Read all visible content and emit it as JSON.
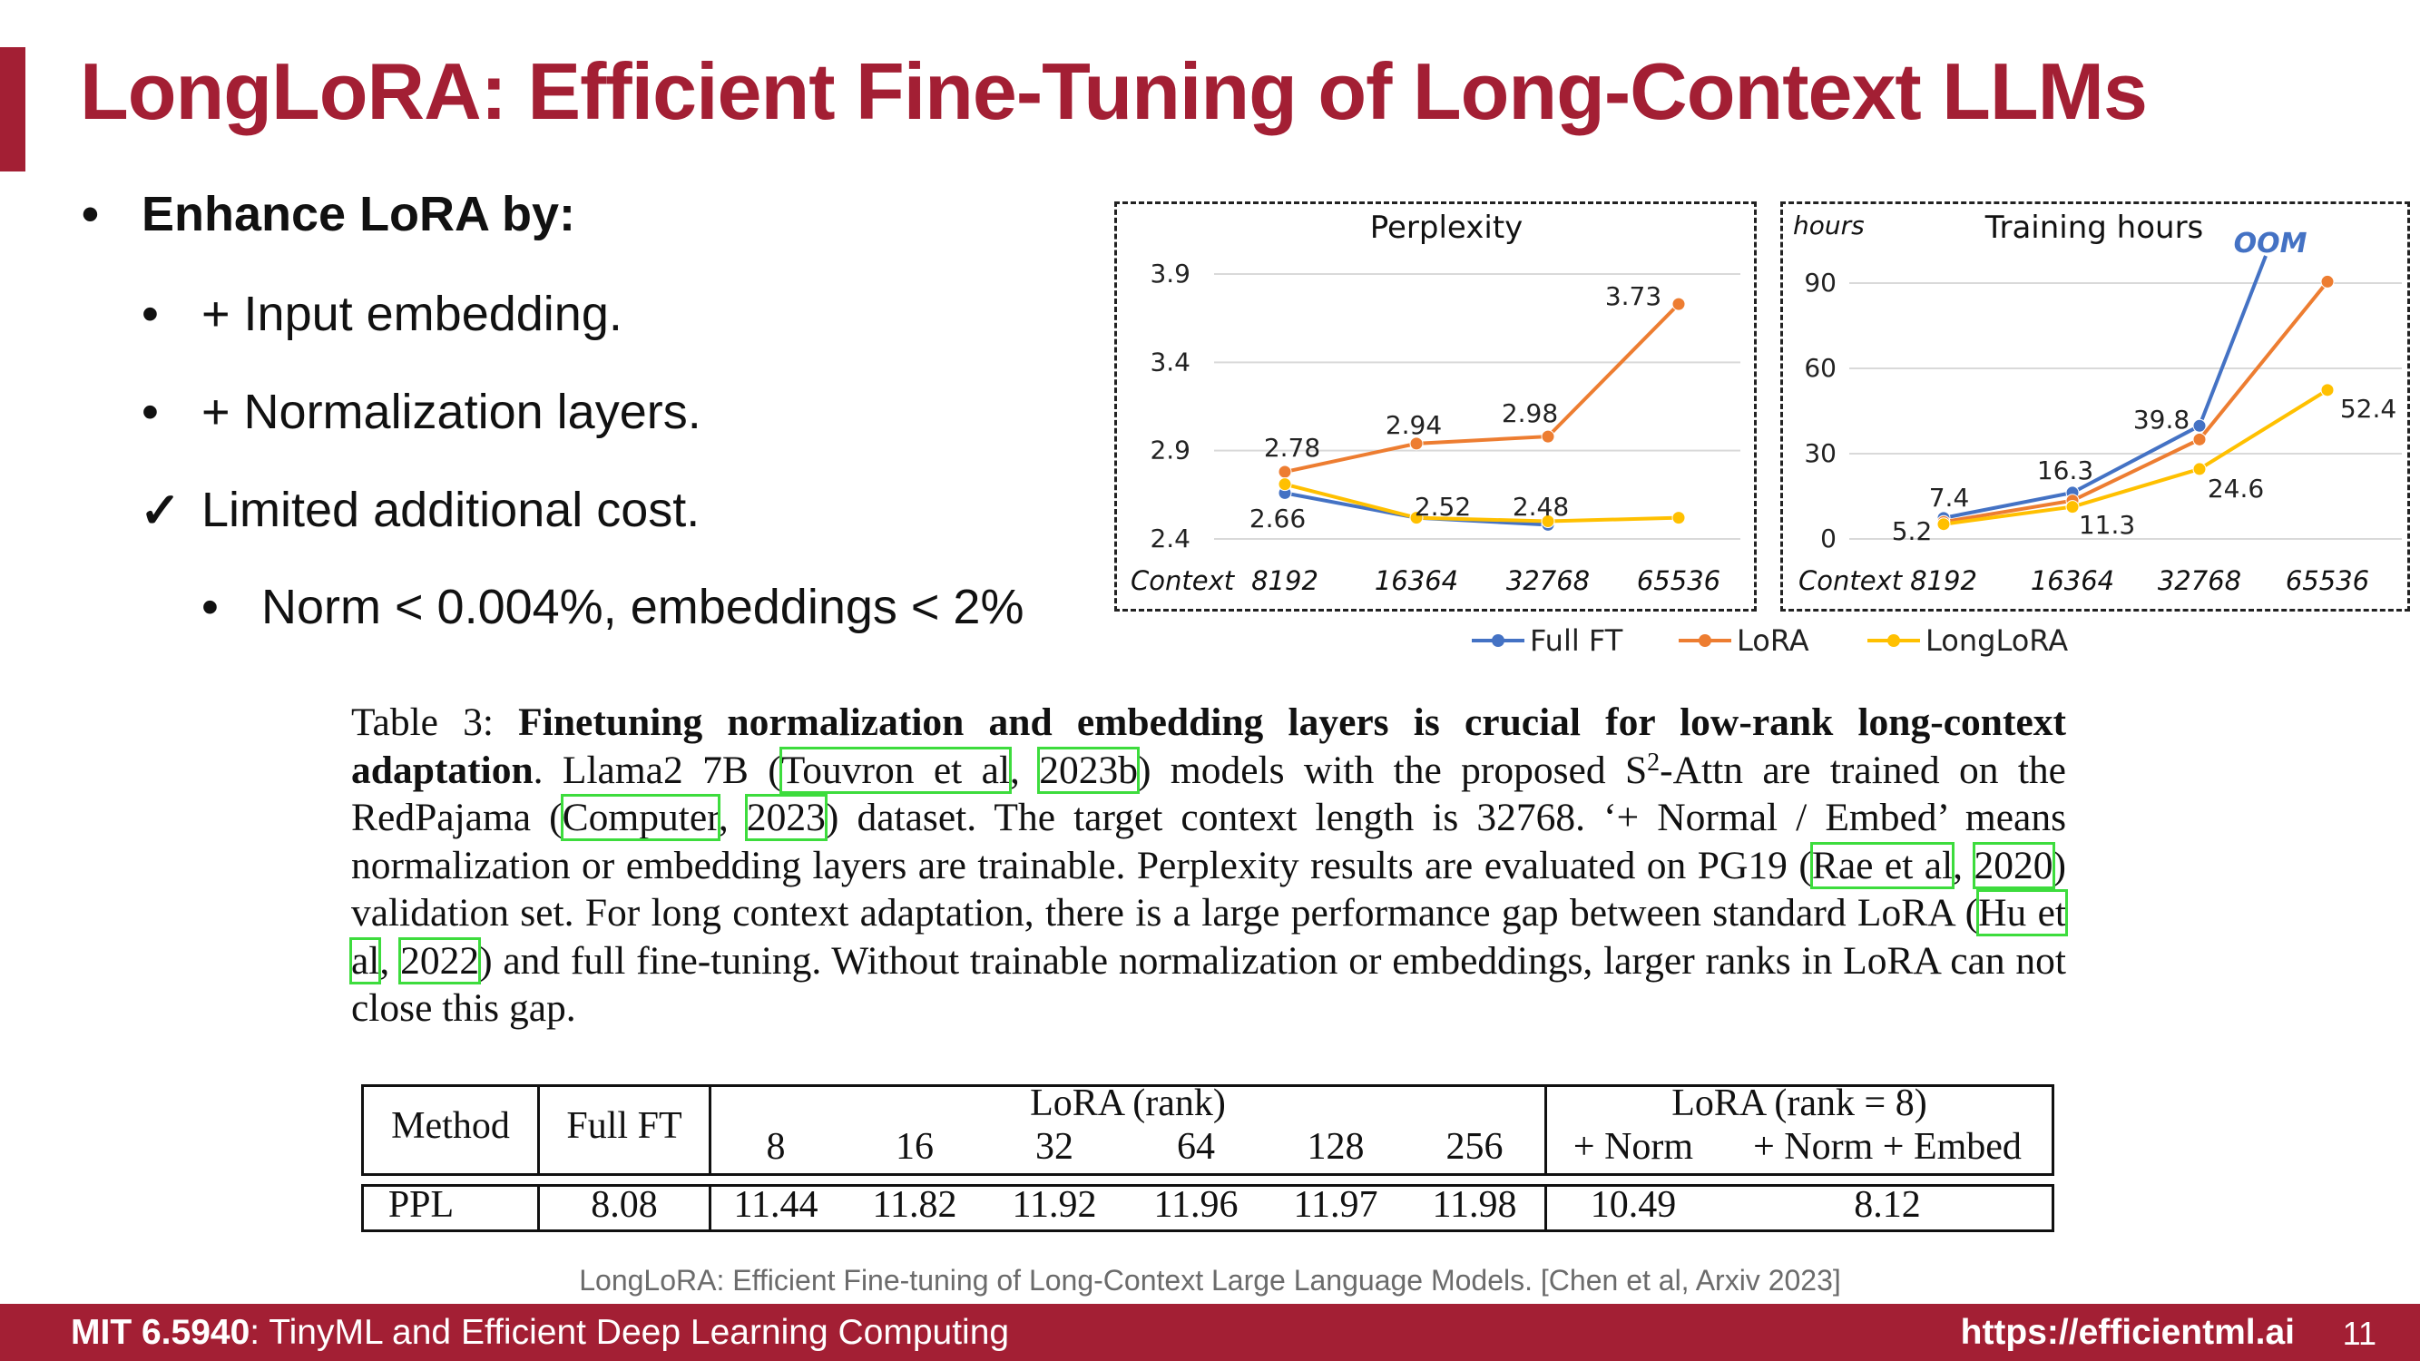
{
  "slide": {
    "title": "LongLoRA: Efficient Fine-Tuning of Long-Context LLMs",
    "bullets": [
      {
        "mark": "•",
        "text": "Enhance LoRA by:"
      },
      {
        "mark": "•",
        "text": "+ Input embedding."
      },
      {
        "mark": "•",
        "text": "+ Normalization layers."
      },
      {
        "mark": "✓",
        "text": "Limited additional cost."
      },
      {
        "mark": "•",
        "text": "Norm < 0.004%, embeddings < 2%"
      }
    ]
  },
  "chart_data": [
    {
      "type": "line",
      "title": "Perplexity",
      "xlabel": "Context",
      "ylabel": "",
      "categories": [
        "8192",
        "16364",
        "32768",
        "65536"
      ],
      "yticks": [
        "2.4",
        "2.9",
        "3.4",
        "3.9"
      ],
      "ylim": [
        2.4,
        3.9
      ],
      "grid": true,
      "series": [
        {
          "name": "Full FT",
          "color": "#4472c4",
          "values": [
            2.66,
            2.52,
            2.48,
            null
          ]
        },
        {
          "name": "LoRA",
          "color": "#ed7d31",
          "values": [
            2.78,
            2.94,
            2.98,
            3.73
          ]
        },
        {
          "name": "LongLoRA",
          "color": "#ffc000",
          "values": [
            2.71,
            2.52,
            2.5,
            2.52
          ]
        }
      ],
      "data_labels": [
        "2.66",
        "2.78",
        "2.94",
        "2.98",
        "3.73",
        "2.52",
        "2.48"
      ]
    },
    {
      "type": "line",
      "title": "Training hours",
      "xlabel": "Context",
      "ylabel": "hours",
      "categories": [
        "8192",
        "16364",
        "32768",
        "65536"
      ],
      "yticks": [
        "0",
        "30",
        "60",
        "90"
      ],
      "ylim": [
        0,
        90
      ],
      "grid": true,
      "annotation": "OOM",
      "series": [
        {
          "name": "Full FT",
          "color": "#4472c4",
          "values": [
            7.4,
            16.3,
            39.8,
            null
          ]
        },
        {
          "name": "LoRA",
          "color": "#ed7d31",
          "values": [
            6.0,
            13.5,
            35.0,
            90.5
          ]
        },
        {
          "name": "LongLoRA",
          "color": "#ffc000",
          "values": [
            5.2,
            11.3,
            24.6,
            52.4
          ]
        }
      ],
      "data_labels": [
        "7.4",
        "5.2",
        "16.3",
        "11.3",
        "39.8",
        "24.6",
        "52.4"
      ]
    }
  ],
  "legend": [
    "Full FT",
    "LoRA",
    "LongLoRA"
  ],
  "caption": {
    "label": "Table 3:",
    "bold": "Finetuning normalization and embedding layers is crucial for low-rank long-context adaptation",
    "s1": ". Llama2 7B (",
    "r1": "Touvron et al",
    "s2": ", ",
    "r2": "2023b",
    "s3": ") models with the proposed S",
    "sup": "2",
    "s4": "-Attn are trained on the RedPajama (",
    "r3": "Computer",
    "s5": ", ",
    "r4": "2023",
    "s6": ") dataset. The target context length is 32768. ‘+ Normal / Embed’ means normalization or embedding layers are trainable. Perplexity results are evaluated on PG19 (",
    "r5": "Rae et al",
    "s7": ", ",
    "r6": "2020",
    "s8": ") validation set. For long context adaptation, there is a large performance gap between standard LoRA (",
    "r7": "Hu et al",
    "s9": ", ",
    "r8": "2022",
    "s10": ") and full fine-tuning. Without trainable normalization or embeddings, larger ranks in LoRA can not close this gap."
  },
  "table": {
    "col_method": "Method",
    "col_fullft": "Full FT",
    "group_lora": "LoRA (rank)",
    "ranks": [
      "8",
      "16",
      "32",
      "64",
      "128",
      "256"
    ],
    "group_lora8": "LoRA (rank = 8)",
    "col_norm": "+ Norm",
    "col_normembed": "+ Norm + Embed",
    "row_label": "PPL",
    "row_values": [
      "8.08",
      "11.44",
      "11.82",
      "11.92",
      "11.96",
      "11.97",
      "11.98",
      "10.49",
      "8.12"
    ]
  },
  "source_note": "LongLoRA: Efficient Fine-tuning of Long-Context Large Language Models. [Chen et al, Arxiv 2023]",
  "footer": {
    "course_bold": "MIT 6.5940",
    "course_rest": ": TinyML and Efficient Deep Learning Computing",
    "url": "https://efficientml.ai",
    "page": "11"
  }
}
